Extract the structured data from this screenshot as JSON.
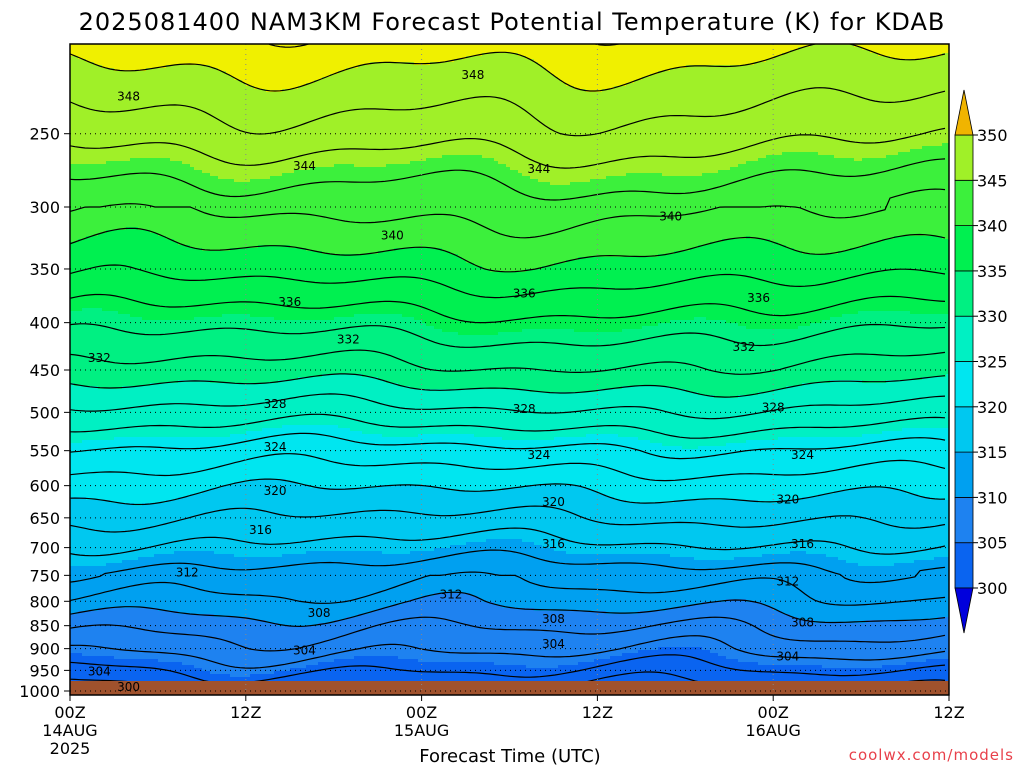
{
  "title": "2025081400 NAM3KM Forecast Potential Temperature (K) for KDAB",
  "xlabel": "Forecast Time (UTC)",
  "credit": "coolwx.com/models",
  "chart_data": {
    "type": "heatmap",
    "subtype": "filled contour time-height cross section",
    "variable": "Potential Temperature (K)",
    "model": "NAM3KM",
    "init": "2025081400",
    "station": "KDAB",
    "x_ticks": [
      {
        "label": "00Z",
        "sub": [
          "14AUG",
          "2025"
        ],
        "hours": 0
      },
      {
        "label": "12Z",
        "sub": [],
        "hours": 12
      },
      {
        "label": "00Z",
        "sub": [
          "15AUG"
        ],
        "hours": 24
      },
      {
        "label": "12Z",
        "sub": [],
        "hours": 36
      },
      {
        "label": "00Z",
        "sub": [
          "16AUG"
        ],
        "hours": 48
      },
      {
        "label": "12Z",
        "sub": [],
        "hours": 60
      }
    ],
    "xlim_hours": [
      0,
      60
    ],
    "y_axis": "pressure (hPa)",
    "y_scale": "log",
    "y_reversed": true,
    "ylim": [
      1010,
      200
    ],
    "y_ticks": [
      250,
      300,
      350,
      400,
      450,
      500,
      550,
      600,
      650,
      700,
      750,
      800,
      850,
      900,
      950,
      1000
    ],
    "grid": "dotted",
    "colorbar": {
      "ticks": [
        300,
        305,
        310,
        315,
        320,
        325,
        330,
        335,
        340,
        345,
        350
      ],
      "levels": [
        {
          "min": 300,
          "max": 305,
          "color": "#0a64f0"
        },
        {
          "min": 305,
          "max": 310,
          "color": "#1e82f0"
        },
        {
          "min": 310,
          "max": 315,
          "color": "#00a0f0"
        },
        {
          "min": 315,
          "max": 320,
          "color": "#00c8f0"
        },
        {
          "min": 320,
          "max": 325,
          "color": "#00e6f0"
        },
        {
          "min": 325,
          "max": 330,
          "color": "#00f0c3"
        },
        {
          "min": 330,
          "max": 335,
          "color": "#00f082"
        },
        {
          "min": 335,
          "max": 340,
          "color": "#00f050"
        },
        {
          "min": 340,
          "max": 345,
          "color": "#3cf03c"
        },
        {
          "min": 345,
          "max": 350,
          "color": "#a0f028"
        },
        {
          "min": 350,
          "max": 355,
          "color": "#f0f000"
        }
      ],
      "under_color": "#0000dc",
      "over_color": "#f0b400"
    },
    "terrain_color": "#a0522d",
    "profile": {
      "pressure": [
        1000,
        950,
        900,
        850,
        800,
        750,
        700,
        650,
        600,
        550,
        500,
        450,
        400,
        350,
        300,
        250,
        200
      ],
      "theta": [
        301.5,
        304,
        306.5,
        308.5,
        311,
        313,
        315.5,
        318,
        320.5,
        323.5,
        327.5,
        331.5,
        335,
        339,
        342.5,
        347,
        351
      ]
    },
    "contour_labels": [
      {
        "value": 348,
        "hours": 4,
        "p": 228
      },
      {
        "value": 348,
        "hours": 27.5,
        "p": 216
      },
      {
        "value": 344,
        "hours": 16,
        "p": 271
      },
      {
        "value": 344,
        "hours": 32,
        "p": 273
      },
      {
        "value": 340,
        "hours": 22,
        "p": 322
      },
      {
        "value": 340,
        "hours": 41,
        "p": 307
      },
      {
        "value": 336,
        "hours": 15,
        "p": 380
      },
      {
        "value": 336,
        "hours": 31,
        "p": 372
      },
      {
        "value": 336,
        "hours": 47,
        "p": 376
      },
      {
        "value": 332,
        "hours": 2,
        "p": 437
      },
      {
        "value": 332,
        "hours": 19,
        "p": 417
      },
      {
        "value": 332,
        "hours": 46,
        "p": 425
      },
      {
        "value": 328,
        "hours": 14,
        "p": 490
      },
      {
        "value": 328,
        "hours": 31,
        "p": 496
      },
      {
        "value": 328,
        "hours": 48,
        "p": 494
      },
      {
        "value": 324,
        "hours": 14,
        "p": 545
      },
      {
        "value": 324,
        "hours": 32,
        "p": 556
      },
      {
        "value": 324,
        "hours": 50,
        "p": 556
      },
      {
        "value": 320,
        "hours": 14,
        "p": 608
      },
      {
        "value": 320,
        "hours": 33,
        "p": 625
      },
      {
        "value": 320,
        "hours": 49,
        "p": 621
      },
      {
        "value": 316,
        "hours": 13,
        "p": 670
      },
      {
        "value": 316,
        "hours": 33,
        "p": 694
      },
      {
        "value": 316,
        "hours": 50,
        "p": 694
      },
      {
        "value": 312,
        "hours": 8,
        "p": 745
      },
      {
        "value": 312,
        "hours": 26,
        "p": 787
      },
      {
        "value": 312,
        "hours": 49,
        "p": 762
      },
      {
        "value": 308,
        "hours": 17,
        "p": 824
      },
      {
        "value": 308,
        "hours": 33,
        "p": 836
      },
      {
        "value": 308,
        "hours": 50,
        "p": 843
      },
      {
        "value": 304,
        "hours": 16,
        "p": 904
      },
      {
        "value": 304,
        "hours": 33,
        "p": 890
      },
      {
        "value": 304,
        "hours": 49,
        "p": 918
      },
      {
        "value": 304,
        "hours": 2,
        "p": 953
      },
      {
        "value": 300,
        "hours": 4,
        "p": 990
      }
    ]
  }
}
